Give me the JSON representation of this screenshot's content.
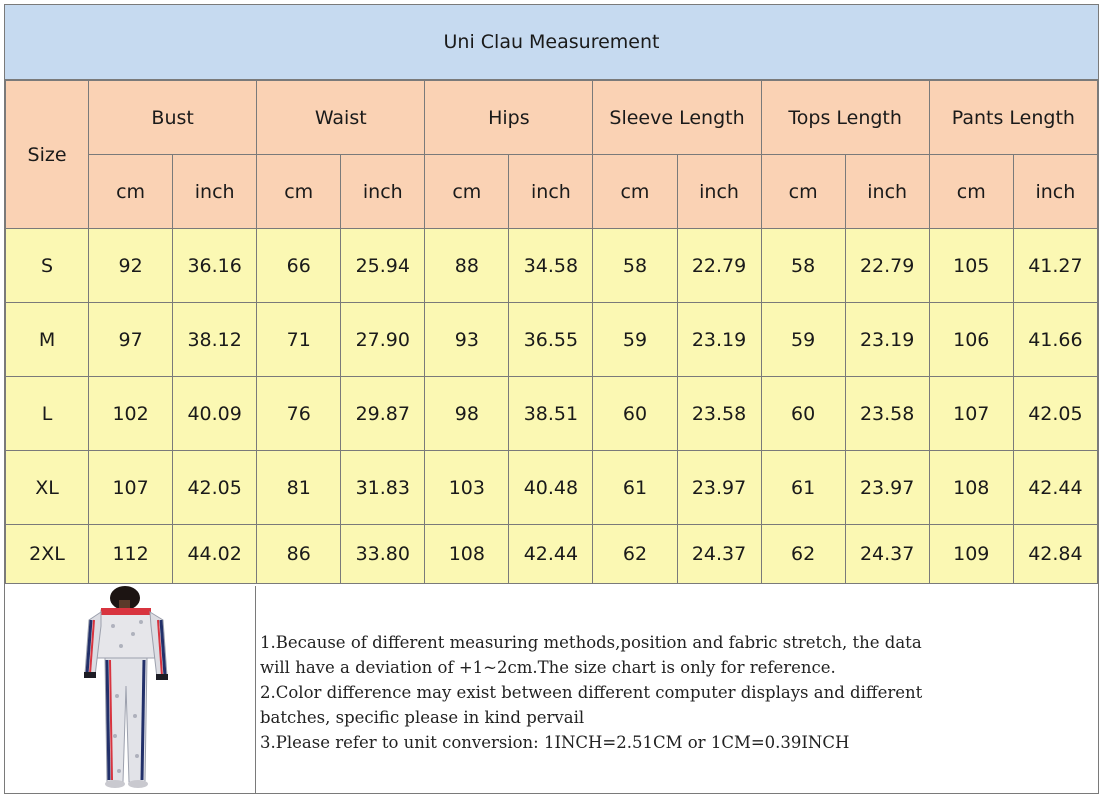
{
  "title": "Uni Clau Measurement",
  "size_label": "Size",
  "measurements": [
    "Bust",
    "Waist",
    "Hips",
    "Sleeve Length",
    "Tops Length",
    "Pants Length"
  ],
  "units": {
    "cm": "cm",
    "inch": "inch"
  },
  "rows": [
    {
      "size": "S",
      "values": [
        "92",
        "36.16",
        "66",
        "25.94",
        "88",
        "34.58",
        "58",
        "22.79",
        "58",
        "22.79",
        "105",
        "41.27"
      ]
    },
    {
      "size": "M",
      "values": [
        "97",
        "38.12",
        "71",
        "27.90",
        "93",
        "36.55",
        "59",
        "23.19",
        "59",
        "23.19",
        "106",
        "41.66"
      ]
    },
    {
      "size": "L",
      "values": [
        "102",
        "40.09",
        "76",
        "29.87",
        "98",
        "38.51",
        "60",
        "23.58",
        "60",
        "23.58",
        "107",
        "42.05"
      ]
    },
    {
      "size": "XL",
      "values": [
        "107",
        "42.05",
        "81",
        "31.83",
        "103",
        "40.48",
        "61",
        "23.97",
        "61",
        "23.97",
        "108",
        "42.44"
      ]
    },
    {
      "size": "2XL",
      "values": [
        "112",
        "44.02",
        "86",
        "33.80",
        "108",
        "42.44",
        "62",
        "24.37",
        "62",
        "24.37",
        "109",
        "42.84"
      ]
    }
  ],
  "notes": [
    "1.Because of different measuring methods,position and fabric stretch, the data",
    "will have a deviation of +1~2cm.The size chart is only for reference.",
    "2.Color difference may exist between different computer displays and different",
    "batches, specific please in kind pervail",
    "3.Please refer to unit conversion: 1INCH=2.51CM or 1CM=0.39INCH"
  ],
  "colors": {
    "title_bg": "#c6daf0",
    "header_bg": "#fad2b4",
    "data_bg": "#fbf8b3",
    "border": "#7a7a7a"
  }
}
